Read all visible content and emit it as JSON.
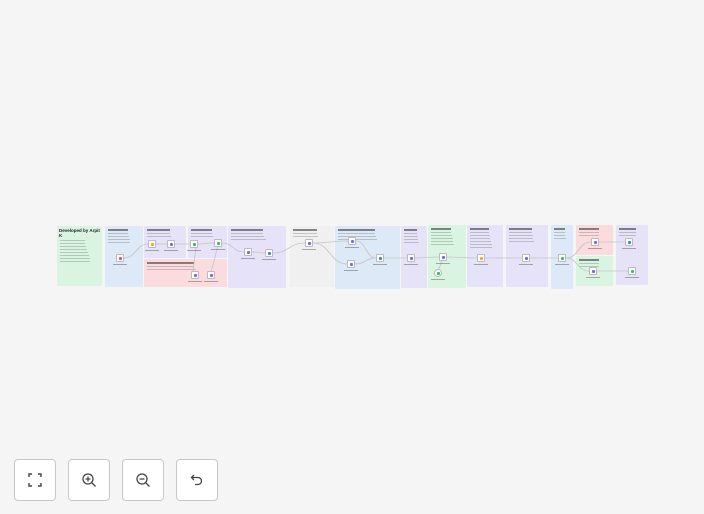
{
  "canvas": {
    "background": "#f5f5f5",
    "first_note_title": "Developed by Arpit K",
    "sticky_colors": {
      "green": "#d9f5e2",
      "blue": "#dde9f7",
      "purple": "#e6e2f7",
      "red": "#fadcdf",
      "gray": "#f0f0f0"
    },
    "node_icon_colors": {
      "trigger": "#e8505b",
      "purple": "#6e6bf0",
      "green": "#3dbb6b",
      "orange": "#f5a623",
      "blue": "#4b7bec"
    }
  },
  "controls": [
    {
      "name": "fit-view-button",
      "icon": "fit-view-icon"
    },
    {
      "name": "zoom-in-button",
      "icon": "zoom-in-icon"
    },
    {
      "name": "zoom-out-button",
      "icon": "zoom-out-icon"
    },
    {
      "name": "reset-zoom-button",
      "icon": "undo-icon"
    }
  ]
}
